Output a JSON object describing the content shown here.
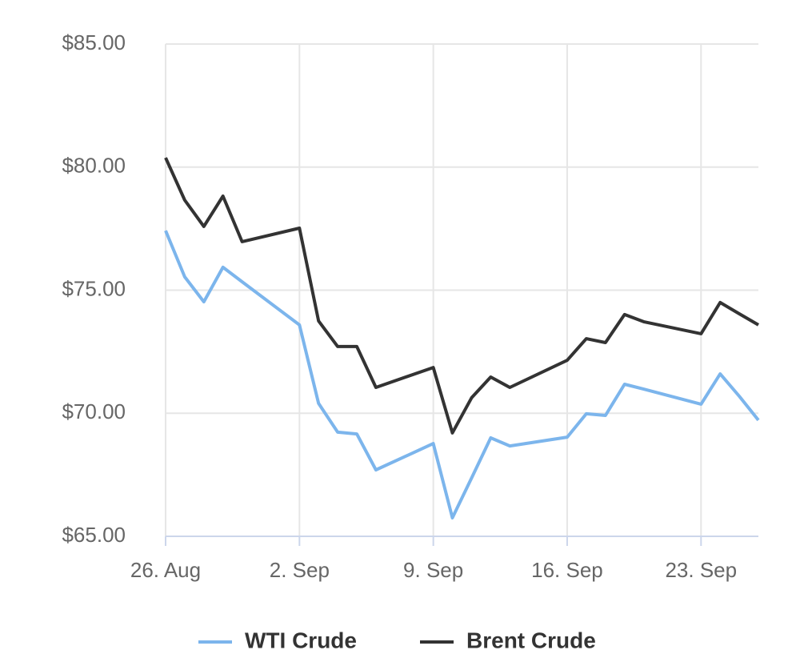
{
  "chart_data": {
    "type": "line",
    "x": [
      "26. Aug",
      "27. Aug",
      "28. Aug",
      "29. Aug",
      "30. Aug",
      "2. Sep",
      "3. Sep",
      "4. Sep",
      "5. Sep",
      "6. Sep",
      "9. Sep",
      "10. Sep",
      "11. Sep",
      "12. Sep",
      "13. Sep",
      "16. Sep",
      "17. Sep",
      "18. Sep",
      "19. Sep",
      "20. Sep",
      "23. Sep",
      "24. Sep",
      "25. Sep",
      "26. Sep"
    ],
    "series": [
      {
        "name": "WTI Crude",
        "color": "#7cb5ec",
        "values": [
          77.42,
          75.54,
          74.53,
          75.93,
          75.34,
          73.59,
          70.4,
          69.23,
          69.16,
          67.7,
          68.77,
          65.75,
          67.37,
          69.0,
          68.67,
          69.03,
          69.98,
          69.91,
          71.18,
          70.98,
          70.37,
          71.6,
          70.69,
          69.72
        ]
      },
      {
        "name": "Brent Crude",
        "color": "#333333",
        "values": [
          80.38,
          78.66,
          77.59,
          78.82,
          76.97,
          77.52,
          73.75,
          72.71,
          72.71,
          71.05,
          71.86,
          69.2,
          70.63,
          71.47,
          71.05,
          72.15,
          73.03,
          72.87,
          74.01,
          73.72,
          73.23,
          74.5,
          74.04,
          73.59
        ]
      }
    ],
    "xlim": [
      "26. Aug",
      "26. Sep"
    ],
    "xticks": [
      "26. Aug",
      "2. Sep",
      "9. Sep",
      "16. Sep",
      "23. Sep"
    ],
    "ylim": [
      65,
      85
    ],
    "yticks": [
      {
        "value": 65,
        "label": "$65.00"
      },
      {
        "value": 70,
        "label": "$70.00"
      },
      {
        "value": 75,
        "label": "$75.00"
      },
      {
        "value": 80,
        "label": "$80.00"
      },
      {
        "value": 85,
        "label": "$85.00"
      }
    ],
    "grid": true,
    "legend": "bottom"
  }
}
